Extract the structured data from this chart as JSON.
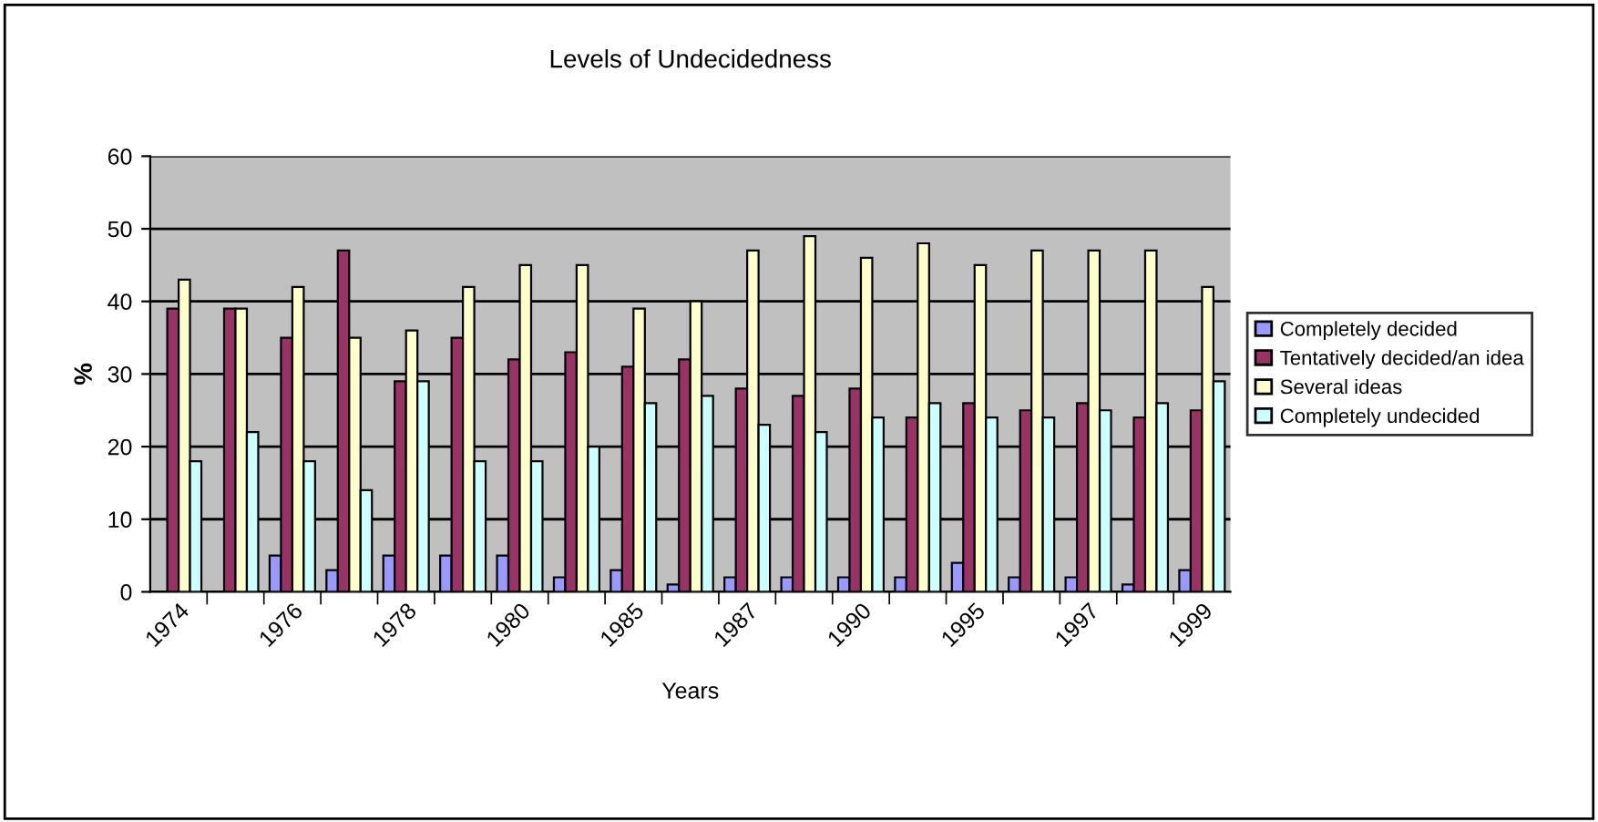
{
  "chart_data": {
    "type": "bar",
    "title": "Levels of Undecidedness",
    "xlabel": "Years",
    "ylabel": "%",
    "categories": [
      "1974",
      null,
      "1976",
      null,
      "1978",
      null,
      "1980",
      null,
      "1985",
      null,
      "1987",
      null,
      "1990",
      null,
      "1995",
      null,
      "1997",
      null,
      "1999"
    ],
    "series": [
      {
        "name": "Completely decided",
        "color": "#9999ff",
        "values": [
          0,
          0,
          5,
          3,
          5,
          5,
          5,
          2,
          3,
          1,
          2,
          2,
          2,
          2,
          4,
          2,
          2,
          1,
          3
        ]
      },
      {
        "name": "Tentatively decided/an idea",
        "color": "#993366",
        "values": [
          39,
          39,
          35,
          47,
          29,
          35,
          32,
          33,
          31,
          32,
          28,
          27,
          28,
          24,
          26,
          25,
          26,
          24,
          25
        ]
      },
      {
        "name": "Several ideas",
        "color": "#ffffcc",
        "values": [
          43,
          39,
          42,
          35,
          36,
          42,
          45,
          45,
          39,
          40,
          47,
          49,
          46,
          48,
          45,
          47,
          47,
          47,
          42
        ]
      },
      {
        "name": "Completely undecided",
        "color": "#ccffff",
        "values": [
          18,
          22,
          18,
          14,
          29,
          18,
          18,
          20,
          26,
          27,
          23,
          22,
          24,
          26,
          24,
          24,
          25,
          26,
          29
        ]
      }
    ],
    "ylim": [
      0,
      60
    ],
    "yticks": [
      0,
      10,
      20,
      30,
      40,
      50,
      60
    ],
    "grid": "y",
    "legend": "right"
  }
}
